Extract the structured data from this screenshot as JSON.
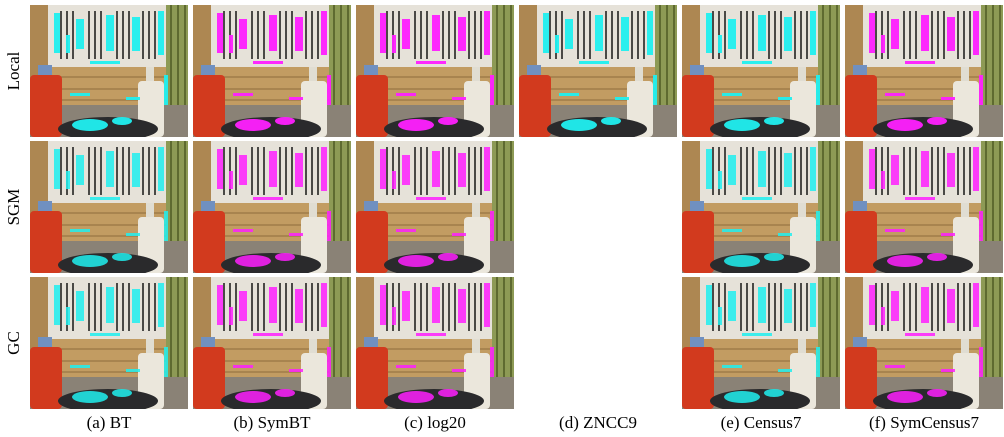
{
  "figure": {
    "row_labels": [
      "Local",
      "SGM",
      "GC"
    ],
    "captions": [
      "(a) BT",
      "(b) SymBT",
      "(c) log20",
      "(d) ZNCC9",
      "(e) Census7",
      "(f) SymCensus7"
    ]
  }
}
